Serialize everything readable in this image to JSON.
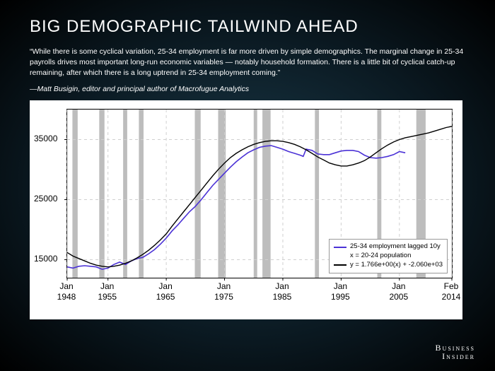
{
  "title": "BIG DEMOGRAPHIC TAILWIND AHEAD",
  "quote": "“While there is some cyclical variation, 25-34 employment is far more driven by simple demographics. The marginal change in 25-34 payrolls drives most important long-run economic variables — notably household formation. There is a little bit of cyclical catch-up remaining, after which there is a long uptrend in 25-34 employment coming.”",
  "attribution": "—Matt Busigin, editor and principal author of Macrofugue Analytics",
  "brand_line1": "Business",
  "brand_line2": "Insider",
  "chart": {
    "type": "line",
    "background_color": "#ffffff",
    "plot_border_color": "#000000",
    "grid_color": "#d0d0d0",
    "recession_band_color": "#bdbdbd",
    "ylim": [
      12000,
      40000
    ],
    "yticks": [
      15000,
      25000,
      35000
    ],
    "xlim": [
      1948,
      2014
    ],
    "xticks": [
      {
        "pos": 1948,
        "label": "Jan\n1948"
      },
      {
        "pos": 1955,
        "label": "Jan\n1955"
      },
      {
        "pos": 1965,
        "label": "Jan\n1965"
      },
      {
        "pos": 1975,
        "label": "Jan\n1975"
      },
      {
        "pos": 1985,
        "label": "Jan\n1985"
      },
      {
        "pos": 1995,
        "label": "Jan\n1995"
      },
      {
        "pos": 2005,
        "label": "Jan\n2005"
      },
      {
        "pos": 2014,
        "label": "Feb\n2014"
      }
    ],
    "recession_bands": [
      [
        1948.9,
        1949.8
      ],
      [
        1953.5,
        1954.4
      ],
      [
        1957.6,
        1958.3
      ],
      [
        1960.3,
        1961.1
      ],
      [
        1969.9,
        1970.9
      ],
      [
        1973.9,
        1975.2
      ],
      [
        1980.0,
        1980.6
      ],
      [
        1981.5,
        1982.9
      ],
      [
        1990.5,
        1991.2
      ],
      [
        2001.2,
        2001.9
      ],
      [
        2007.9,
        2009.5
      ]
    ],
    "series": [
      {
        "name": "25-34 employment lagged 10y\nx = 20-24 population",
        "color": "#4b32d6",
        "line_width": 1.6,
        "points": [
          [
            1948,
            13800
          ],
          [
            1949,
            13600
          ],
          [
            1950,
            13900
          ],
          [
            1951,
            14000
          ],
          [
            1952,
            13900
          ],
          [
            1953,
            13800
          ],
          [
            1954,
            13400
          ],
          [
            1955,
            13600
          ],
          [
            1956,
            14200
          ],
          [
            1957,
            14600
          ],
          [
            1958,
            14200
          ],
          [
            1959,
            14800
          ],
          [
            1960,
            15200
          ],
          [
            1961,
            15400
          ],
          [
            1962,
            16000
          ],
          [
            1963,
            16700
          ],
          [
            1964,
            17600
          ],
          [
            1965,
            18600
          ],
          [
            1966,
            19800
          ],
          [
            1967,
            20800
          ],
          [
            1968,
            21900
          ],
          [
            1969,
            23000
          ],
          [
            1970,
            23900
          ],
          [
            1971,
            25000
          ],
          [
            1972,
            26200
          ],
          [
            1973,
            27400
          ],
          [
            1974,
            28400
          ],
          [
            1975,
            29400
          ],
          [
            1976,
            30400
          ],
          [
            1977,
            31300
          ],
          [
            1978,
            32100
          ],
          [
            1979,
            32800
          ],
          [
            1980,
            33300
          ],
          [
            1981,
            33700
          ],
          [
            1982,
            33900
          ],
          [
            1983,
            34000
          ],
          [
            1984,
            33700
          ],
          [
            1985,
            33400
          ],
          [
            1986,
            33000
          ],
          [
            1987,
            32700
          ],
          [
            1988,
            32400
          ],
          [
            1988.5,
            32200
          ],
          [
            1989,
            33400
          ],
          [
            1990,
            33200
          ],
          [
            1991,
            32600
          ],
          [
            1992,
            32500
          ],
          [
            1993,
            32500
          ],
          [
            1994,
            32800
          ],
          [
            1995,
            33100
          ],
          [
            1996,
            33200
          ],
          [
            1997,
            33200
          ],
          [
            1998,
            33000
          ],
          [
            1999,
            32400
          ],
          [
            2000,
            32000
          ],
          [
            2001,
            31900
          ],
          [
            2002,
            32000
          ],
          [
            2003,
            32200
          ],
          [
            2004,
            32500
          ],
          [
            2005,
            33000
          ],
          [
            2006,
            32800
          ]
        ]
      },
      {
        "name": "y = 1.766e+00(x) + -2.060e+03",
        "color": "#000000",
        "line_width": 1.4,
        "points": [
          [
            1948,
            16200
          ],
          [
            1949,
            15600
          ],
          [
            1950,
            15200
          ],
          [
            1951,
            14800
          ],
          [
            1952,
            14400
          ],
          [
            1953,
            14100
          ],
          [
            1954,
            13900
          ],
          [
            1955,
            13800
          ],
          [
            1956,
            13900
          ],
          [
            1957,
            14100
          ],
          [
            1958,
            14400
          ],
          [
            1959,
            14800
          ],
          [
            1960,
            15300
          ],
          [
            1961,
            15900
          ],
          [
            1962,
            16600
          ],
          [
            1963,
            17400
          ],
          [
            1964,
            18300
          ],
          [
            1965,
            19300
          ],
          [
            1966,
            20600
          ],
          [
            1967,
            21800
          ],
          [
            1968,
            23000
          ],
          [
            1969,
            24200
          ],
          [
            1970,
            25400
          ],
          [
            1971,
            26600
          ],
          [
            1972,
            27800
          ],
          [
            1973,
            29000
          ],
          [
            1974,
            30100
          ],
          [
            1975,
            31100
          ],
          [
            1976,
            32000
          ],
          [
            1977,
            32700
          ],
          [
            1978,
            33300
          ],
          [
            1979,
            33800
          ],
          [
            1980,
            34200
          ],
          [
            1981,
            34500
          ],
          [
            1982,
            34700
          ],
          [
            1983,
            34800
          ],
          [
            1984,
            34800
          ],
          [
            1985,
            34700
          ],
          [
            1986,
            34500
          ],
          [
            1987,
            34200
          ],
          [
            1988,
            33800
          ],
          [
            1989,
            33300
          ],
          [
            1990,
            32700
          ],
          [
            1991,
            32100
          ],
          [
            1992,
            31600
          ],
          [
            1993,
            31100
          ],
          [
            1994,
            30800
          ],
          [
            1995,
            30600
          ],
          [
            1996,
            30600
          ],
          [
            1997,
            30800
          ],
          [
            1998,
            31100
          ],
          [
            1999,
            31500
          ],
          [
            2000,
            32100
          ],
          [
            2001,
            32800
          ],
          [
            2002,
            33500
          ],
          [
            2003,
            34100
          ],
          [
            2004,
            34600
          ],
          [
            2005,
            35000
          ],
          [
            2006,
            35300
          ],
          [
            2007,
            35500
          ],
          [
            2008,
            35700
          ],
          [
            2009,
            35900
          ],
          [
            2010,
            36100
          ],
          [
            2011,
            36400
          ],
          [
            2012,
            36700
          ],
          [
            2013,
            37000
          ],
          [
            2014,
            37200
          ]
        ]
      }
    ],
    "legend": {
      "position": "lower-right",
      "border_color": "#999999",
      "fontsize": 9.5,
      "items": [
        {
          "color": "#4b32d6",
          "text1": "25-34 employment lagged 10y",
          "text2": "x = 20-24 population"
        },
        {
          "color": "#000000",
          "text1": "y = 1.766e+00(x) + -2.060e+03"
        }
      ]
    },
    "tick_fontsize": 12,
    "tick_color": "#000000"
  }
}
